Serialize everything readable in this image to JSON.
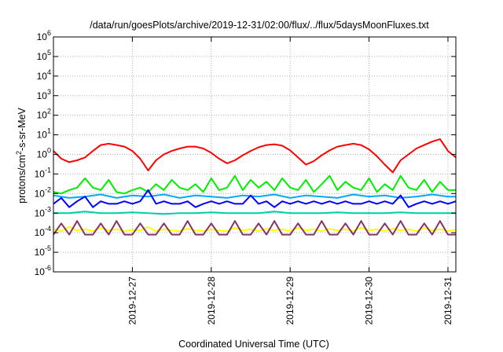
{
  "chart_data": {
    "type": "line",
    "title": "/data/run/goesPlots/archive/2019-12-31/02:00/flux/../flux/5daysMoonFluxes.txt",
    "xlabel": "Coordinated Universal Time (UTC)",
    "ylabel_base": "protons/cm",
    "ylabel_sup": "2",
    "ylabel_tail": "-s-sr-MeV",
    "yscale": "log",
    "ylim": [
      1e-06,
      1000000.0
    ],
    "xlim": [
      0,
      5.1
    ],
    "grid": true,
    "y_ticks": [
      {
        "base": "10",
        "exp": "-6",
        "value": 1e-06
      },
      {
        "base": "10",
        "exp": "-5",
        "value": 1e-05
      },
      {
        "base": "10",
        "exp": "-4",
        "value": 0.0001
      },
      {
        "base": "10",
        "exp": "-3",
        "value": 0.001
      },
      {
        "base": "10",
        "exp": "-2",
        "value": 0.01
      },
      {
        "base": "10",
        "exp": "-1",
        "value": 0.1
      },
      {
        "base": "10",
        "exp": "0",
        "value": 1
      },
      {
        "base": "10",
        "exp": "1",
        "value": 10
      },
      {
        "base": "10",
        "exp": "2",
        "value": 100
      },
      {
        "base": "10",
        "exp": "3",
        "value": 1000
      },
      {
        "base": "10",
        "exp": "4",
        "value": 10000
      },
      {
        "base": "10",
        "exp": "5",
        "value": 100000
      },
      {
        "base": "10",
        "exp": "6",
        "value": 1000000
      }
    ],
    "x_ticks": [
      {
        "label": "2019-12-27",
        "value": 1
      },
      {
        "label": "2019-12-28",
        "value": 2
      },
      {
        "label": "2019-12-29",
        "value": 3
      },
      {
        "label": "2019-12-30",
        "value": 4
      },
      {
        "label": "2019-12-31",
        "value": 5
      }
    ],
    "series": [
      {
        "color": "#ff0000",
        "x": [
          0,
          0.1,
          0.2,
          0.3,
          0.4,
          0.5,
          0.6,
          0.7,
          0.8,
          0.9,
          1.0,
          1.1,
          1.2,
          1.3,
          1.4,
          1.5,
          1.6,
          1.7,
          1.8,
          1.9,
          2.0,
          2.1,
          2.2,
          2.3,
          2.4,
          2.5,
          2.6,
          2.7,
          2.8,
          2.9,
          3.0,
          3.1,
          3.2,
          3.3,
          3.4,
          3.5,
          3.6,
          3.7,
          3.8,
          3.9,
          4.0,
          4.1,
          4.2,
          4.3,
          4.4,
          4.5,
          4.6,
          4.7,
          4.8,
          4.9,
          5.0,
          5.1
        ],
        "y": [
          1.5,
          0.6,
          0.4,
          0.5,
          0.7,
          1.5,
          3.0,
          3.5,
          3.0,
          2.5,
          1.5,
          0.6,
          0.15,
          0.5,
          1.0,
          1.5,
          2.0,
          2.5,
          2.5,
          2.0,
          1.2,
          0.6,
          0.35,
          0.5,
          0.9,
          1.5,
          2.3,
          3.0,
          3.3,
          2.8,
          1.6,
          0.7,
          0.3,
          0.45,
          0.9,
          1.6,
          2.5,
          3.0,
          3.5,
          3.0,
          1.8,
          0.8,
          0.3,
          0.12,
          0.5,
          1.0,
          2.0,
          3.0,
          4.5,
          6.0,
          1.5,
          0.7
        ]
      },
      {
        "color": "#00ee00",
        "x": [
          0,
          0.1,
          0.2,
          0.3,
          0.4,
          0.5,
          0.6,
          0.7,
          0.8,
          0.9,
          1.0,
          1.1,
          1.2,
          1.3,
          1.4,
          1.5,
          1.6,
          1.7,
          1.8,
          1.9,
          2.0,
          2.1,
          2.2,
          2.3,
          2.4,
          2.5,
          2.6,
          2.7,
          2.8,
          2.9,
          3.0,
          3.1,
          3.2,
          3.3,
          3.4,
          3.5,
          3.6,
          3.7,
          3.8,
          3.9,
          4.0,
          4.1,
          4.2,
          4.3,
          4.4,
          4.5,
          4.6,
          4.7,
          4.8,
          4.9,
          5.0,
          5.1
        ],
        "y": [
          0.012,
          0.01,
          0.015,
          0.02,
          0.06,
          0.02,
          0.015,
          0.05,
          0.012,
          0.01,
          0.015,
          0.02,
          0.012,
          0.03,
          0.015,
          0.05,
          0.02,
          0.015,
          0.03,
          0.012,
          0.06,
          0.015,
          0.02,
          0.08,
          0.015,
          0.05,
          0.02,
          0.04,
          0.015,
          0.06,
          0.02,
          0.015,
          0.05,
          0.012,
          0.03,
          0.08,
          0.015,
          0.04,
          0.02,
          0.015,
          0.06,
          0.012,
          0.03,
          0.015,
          0.08,
          0.02,
          0.015,
          0.05,
          0.012,
          0.04,
          0.015,
          0.015
        ]
      },
      {
        "color": "#00aaff",
        "x": [
          0,
          0.2,
          0.4,
          0.6,
          0.8,
          1.0,
          1.2,
          1.4,
          1.6,
          1.8,
          2.0,
          2.2,
          2.4,
          2.6,
          2.8,
          3.0,
          3.2,
          3.4,
          3.6,
          3.8,
          4.0,
          4.2,
          4.4,
          4.6,
          4.8,
          5.0,
          5.1
        ],
        "y": [
          0.008,
          0.006,
          0.007,
          0.009,
          0.006,
          0.008,
          0.007,
          0.009,
          0.006,
          0.008,
          0.007,
          0.006,
          0.008,
          0.007,
          0.009,
          0.006,
          0.008,
          0.007,
          0.006,
          0.009,
          0.007,
          0.008,
          0.006,
          0.007,
          0.009,
          0.007,
          0.007
        ]
      },
      {
        "color": "#0000ff",
        "x": [
          0,
          0.1,
          0.2,
          0.3,
          0.4,
          0.5,
          0.6,
          0.7,
          0.8,
          0.9,
          1.0,
          1.1,
          1.2,
          1.3,
          1.4,
          1.5,
          1.6,
          1.7,
          1.8,
          1.9,
          2.0,
          2.1,
          2.2,
          2.3,
          2.4,
          2.5,
          2.6,
          2.7,
          2.8,
          2.9,
          3.0,
          3.1,
          3.2,
          3.3,
          3.4,
          3.5,
          3.6,
          3.7,
          3.8,
          3.9,
          4.0,
          4.1,
          4.2,
          4.3,
          4.4,
          4.5,
          4.6,
          4.7,
          4.8,
          4.9,
          5.0,
          5.1
        ],
        "y": [
          0.003,
          0.006,
          0.002,
          0.004,
          0.007,
          0.002,
          0.004,
          0.003,
          0.003,
          0.004,
          0.003,
          0.004,
          0.015,
          0.003,
          0.004,
          0.003,
          0.003,
          0.004,
          0.002,
          0.003,
          0.004,
          0.003,
          0.004,
          0.003,
          0.003,
          0.008,
          0.003,
          0.004,
          0.002,
          0.004,
          0.003,
          0.004,
          0.003,
          0.004,
          0.003,
          0.004,
          0.003,
          0.004,
          0.003,
          0.003,
          0.004,
          0.003,
          0.004,
          0.003,
          0.008,
          0.002,
          0.003,
          0.004,
          0.003,
          0.004,
          0.003,
          0.004
        ]
      },
      {
        "color": "#00ccaa",
        "x": [
          0,
          0.2,
          0.4,
          0.6,
          0.8,
          1.0,
          1.2,
          1.4,
          1.6,
          1.8,
          2.0,
          2.2,
          2.4,
          2.6,
          2.8,
          3.0,
          3.2,
          3.4,
          3.6,
          3.8,
          4.0,
          4.2,
          4.4,
          4.6,
          4.8,
          5.0,
          5.1
        ],
        "y": [
          0.001,
          0.001,
          0.0012,
          0.001,
          0.001,
          0.0011,
          0.001,
          0.0009,
          0.001,
          0.001,
          0.0011,
          0.001,
          0.001,
          0.001,
          0.0012,
          0.001,
          0.001,
          0.001,
          0.0011,
          0.001,
          0.001,
          0.001,
          0.0011,
          0.001,
          0.001,
          0.001,
          0.001
        ]
      },
      {
        "color": "#ffff00",
        "x": [
          0,
          0.1,
          0.2,
          0.3,
          0.4,
          0.5,
          0.6,
          0.7,
          0.8,
          0.9,
          1.0,
          1.1,
          1.2,
          1.3,
          1.4,
          1.5,
          1.6,
          1.7,
          1.8,
          1.9,
          2.0,
          2.1,
          2.2,
          2.3,
          2.4,
          2.5,
          2.6,
          2.7,
          2.8,
          2.9,
          3.0,
          3.1,
          3.2,
          3.3,
          3.4,
          3.5,
          3.6,
          3.7,
          3.8,
          3.9,
          4.0,
          4.1,
          4.2,
          4.3,
          4.4,
          4.5,
          4.6,
          4.7,
          4.8,
          4.9,
          5.0,
          5.1
        ],
        "y": [
          0.00015,
          0.00012,
          0.0002,
          0.00013,
          0.00015,
          0.00012,
          0.00018,
          0.00013,
          0.00015,
          0.00012,
          0.00014,
          0.00013,
          0.0002,
          0.00012,
          0.00015,
          0.00013,
          0.00012,
          0.00016,
          0.00013,
          0.00012,
          0.00015,
          0.00013,
          0.00012,
          0.00018,
          0.00013,
          0.00015,
          0.00012,
          0.00016,
          0.00013,
          0.00015,
          0.00012,
          0.00018,
          0.00013,
          0.00015,
          0.00012,
          0.00016,
          0.00013,
          0.00015,
          0.00012,
          0.00018,
          0.00013,
          0.00015,
          0.00012,
          0.00016,
          0.00013,
          0.00015,
          0.00012,
          0.00018,
          0.00013,
          0.00015,
          0.00012,
          0.00014
        ]
      },
      {
        "color": "#883366",
        "x": [
          0,
          0.1,
          0.2,
          0.3,
          0.4,
          0.5,
          0.6,
          0.7,
          0.8,
          0.9,
          1.0,
          1.1,
          1.2,
          1.3,
          1.4,
          1.5,
          1.6,
          1.7,
          1.8,
          1.9,
          2.0,
          2.1,
          2.2,
          2.3,
          2.4,
          2.5,
          2.6,
          2.7,
          2.8,
          2.9,
          3.0,
          3.1,
          3.2,
          3.3,
          3.4,
          3.5,
          3.6,
          3.7,
          3.8,
          3.9,
          4.0,
          4.1,
          4.2,
          4.3,
          4.4,
          4.5,
          4.6,
          4.7,
          4.8,
          4.9,
          5.0,
          5.1
        ],
        "y": [
          8e-05,
          0.0003,
          8e-05,
          0.0004,
          8e-05,
          8e-05,
          0.0003,
          8e-05,
          0.0004,
          8e-05,
          8e-05,
          0.0003,
          8e-05,
          8e-05,
          0.0003,
          8e-05,
          8e-05,
          0.0004,
          8e-05,
          8e-05,
          0.0003,
          8e-05,
          8e-05,
          0.0004,
          8e-05,
          8e-05,
          0.0003,
          8e-05,
          0.0004,
          8e-05,
          8e-05,
          0.0003,
          8e-05,
          8e-05,
          0.0004,
          8e-05,
          8e-05,
          0.0003,
          8e-05,
          0.0004,
          8e-05,
          8e-05,
          0.0003,
          8e-05,
          0.0004,
          8e-05,
          8e-05,
          0.0003,
          8e-05,
          0.0004,
          8e-05,
          8e-05
        ]
      }
    ]
  }
}
